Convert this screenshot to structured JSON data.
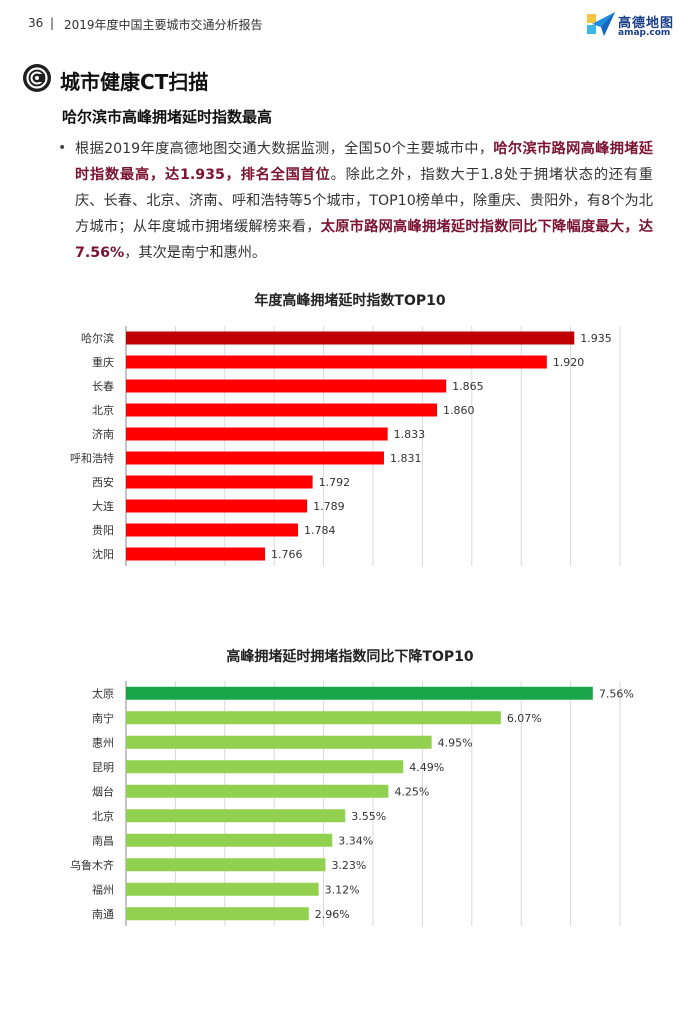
{
  "header": {
    "page_number": "36",
    "separator": "|",
    "report_title": "2019年度中国主要城市交通分析报告",
    "logo_cn": "高德地图",
    "logo_en": "amap.com"
  },
  "section": {
    "title": "城市健康CT扫描",
    "subtitle": "哈尔滨市高峰拥堵延时指数最高"
  },
  "paragraph": {
    "bullet": "•",
    "t1": "根据2019年度高德地图交通大数据监测，全国50个主要城市中，",
    "h1": "哈尔滨市路网高峰拥堵延时指数最高，达1.935，排名全国首位",
    "t2": "。除此之外，指数大于1.8处于拥堵状态的还有重庆、长春、北京、济南、呼和浩特等5个城市，TOP10榜单中，除重庆、贵阳外，有8个为北方城市；从年度城市拥堵缓解榜来看，",
    "h2": "太原市路网高峰拥堵延时指数同比下降幅度最大，达7.56%",
    "t3": "，其次是南宁和惠州。"
  },
  "chart_data": [
    {
      "type": "bar",
      "orientation": "horizontal",
      "title": "年度高峰拥堵延时指数TOP10",
      "categories": [
        "哈尔滨",
        "重庆",
        "长春",
        "北京",
        "济南",
        "呼和浩特",
        "西安",
        "大连",
        "贵阳",
        "沈阳"
      ],
      "values": [
        1.935,
        1.92,
        1.865,
        1.86,
        1.833,
        1.831,
        1.792,
        1.789,
        1.784,
        1.766
      ],
      "labels": [
        "1.935",
        "1.920",
        "1.865",
        "1.860",
        "1.833",
        "1.831",
        "1.792",
        "1.789",
        "1.784",
        "1.766"
      ],
      "xlim": [
        1.69,
        1.96
      ],
      "grid": true,
      "colors": {
        "highlight": "#c00000",
        "bar": "#ff0000",
        "grid": "#d9d9d9"
      }
    },
    {
      "type": "bar",
      "orientation": "horizontal",
      "title": "高峰拥堵延时拥堵指数同比下降TOP10",
      "categories": [
        "太原",
        "南宁",
        "惠州",
        "昆明",
        "烟台",
        "北京",
        "南昌",
        "乌鲁木齐",
        "福州",
        "南通"
      ],
      "values": [
        7.56,
        6.07,
        4.95,
        4.49,
        4.25,
        3.55,
        3.34,
        3.23,
        3.12,
        2.96
      ],
      "labels": [
        "7.56%",
        "6.07%",
        "4.95%",
        "4.49%",
        "4.25%",
        "3.55%",
        "3.34%",
        "3.23%",
        "3.12%",
        "2.96%"
      ],
      "xlim": [
        0,
        8.0
      ],
      "grid": true,
      "colors": {
        "highlight": "#19a64a",
        "bar": "#92d050",
        "grid": "#d9d9d9"
      }
    }
  ]
}
